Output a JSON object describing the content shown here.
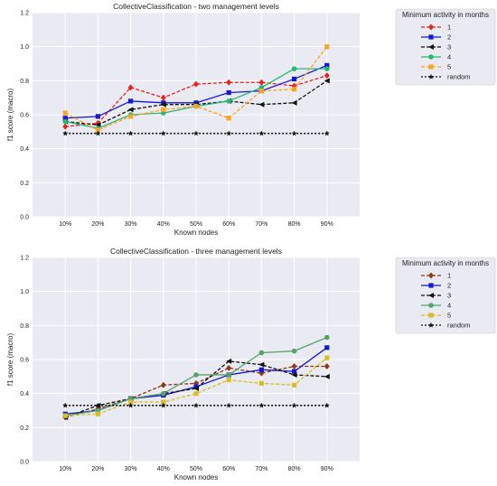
{
  "chart_data": [
    {
      "type": "line",
      "title": "CollectiveClassification - two management levels",
      "xlabel": "Known nodes",
      "ylabel": "f1 score (macro)",
      "categories": [
        "10%",
        "20%",
        "30%",
        "40%",
        "50%",
        "60%",
        "70%",
        "80%",
        "90%"
      ],
      "ylim": [
        0.0,
        1.2
      ],
      "yticks": [
        "0.0",
        "0.2",
        "0.4",
        "0.6",
        "0.8",
        "1.0",
        "1.2"
      ],
      "grid": true,
      "legend_title": "Minimum activity in months",
      "legend_position": "outside-right",
      "series": [
        {
          "name": "1",
          "color": "#e8231f",
          "marker": "diamond",
          "dash": "4,2",
          "values": [
            0.53,
            0.55,
            0.76,
            0.7,
            0.78,
            0.79,
            0.79,
            0.77,
            0.83
          ]
        },
        {
          "name": "2",
          "color": "#1717d6",
          "marker": "square",
          "dash": "",
          "values": [
            0.58,
            0.59,
            0.68,
            0.67,
            0.67,
            0.73,
            0.74,
            0.81,
            0.89
          ]
        },
        {
          "name": "3",
          "color": "#111111",
          "marker": "triangle-left",
          "dash": "4,2",
          "values": [
            0.56,
            0.54,
            0.63,
            0.66,
            0.66,
            0.68,
            0.66,
            0.67,
            0.8
          ]
        },
        {
          "name": "4",
          "color": "#2bb673",
          "marker": "circle",
          "dash": "",
          "values": [
            0.56,
            0.52,
            0.6,
            0.61,
            0.65,
            0.68,
            0.76,
            0.87,
            0.87
          ]
        },
        {
          "name": "5",
          "color": "#f5a623",
          "marker": "square",
          "dash": "4,2",
          "values": [
            0.61,
            0.51,
            0.59,
            0.63,
            0.65,
            0.58,
            0.74,
            0.75,
            1.0
          ]
        },
        {
          "name": "random",
          "color": "#111111",
          "marker": "star",
          "dash": "2,2",
          "values": [
            0.49,
            0.49,
            0.49,
            0.49,
            0.49,
            0.49,
            0.49,
            0.49,
            0.49
          ]
        }
      ]
    },
    {
      "type": "line",
      "title": "CollectiveClassification - three management levels",
      "xlabel": "Known nodes",
      "ylabel": "f1 score (macro)",
      "categories": [
        "10%",
        "20%",
        "30%",
        "40%",
        "50%",
        "60%",
        "70%",
        "80%",
        "90%"
      ],
      "ylim": [
        0.0,
        1.2
      ],
      "yticks": [
        "0.0",
        "0.2",
        "0.4",
        "0.6",
        "0.8",
        "1.0",
        "1.2"
      ],
      "grid": true,
      "legend_title": "Minimum activity in months",
      "legend_position": "outside-right",
      "series": [
        {
          "name": "1",
          "color": "#8b3a1a",
          "marker": "diamond",
          "dash": "4,2",
          "values": [
            0.26,
            0.31,
            0.37,
            0.45,
            0.46,
            0.55,
            0.52,
            0.56,
            0.56
          ]
        },
        {
          "name": "2",
          "color": "#1717d6",
          "marker": "square",
          "dash": "",
          "values": [
            0.28,
            0.3,
            0.37,
            0.39,
            0.44,
            0.51,
            0.54,
            0.53,
            0.67
          ]
        },
        {
          "name": "3",
          "color": "#111111",
          "marker": "triangle-left",
          "dash": "4,2",
          "values": [
            0.26,
            0.33,
            0.37,
            0.4,
            0.43,
            0.59,
            0.57,
            0.51,
            0.5
          ]
        },
        {
          "name": "4",
          "color": "#56a36c",
          "marker": "circle",
          "dash": "",
          "values": [
            0.27,
            0.3,
            0.37,
            0.4,
            0.51,
            0.51,
            0.64,
            0.65,
            0.73
          ]
        },
        {
          "name": "5",
          "color": "#d4c026",
          "marker": "square",
          "dash": "4,2",
          "values": [
            0.27,
            0.28,
            0.35,
            0.35,
            0.4,
            0.48,
            0.46,
            0.45,
            0.61
          ]
        },
        {
          "name": "random",
          "color": "#111111",
          "marker": "star",
          "dash": "2,2",
          "values": [
            0.33,
            0.33,
            0.33,
            0.33,
            0.33,
            0.33,
            0.33,
            0.33,
            0.33
          ]
        }
      ]
    }
  ]
}
